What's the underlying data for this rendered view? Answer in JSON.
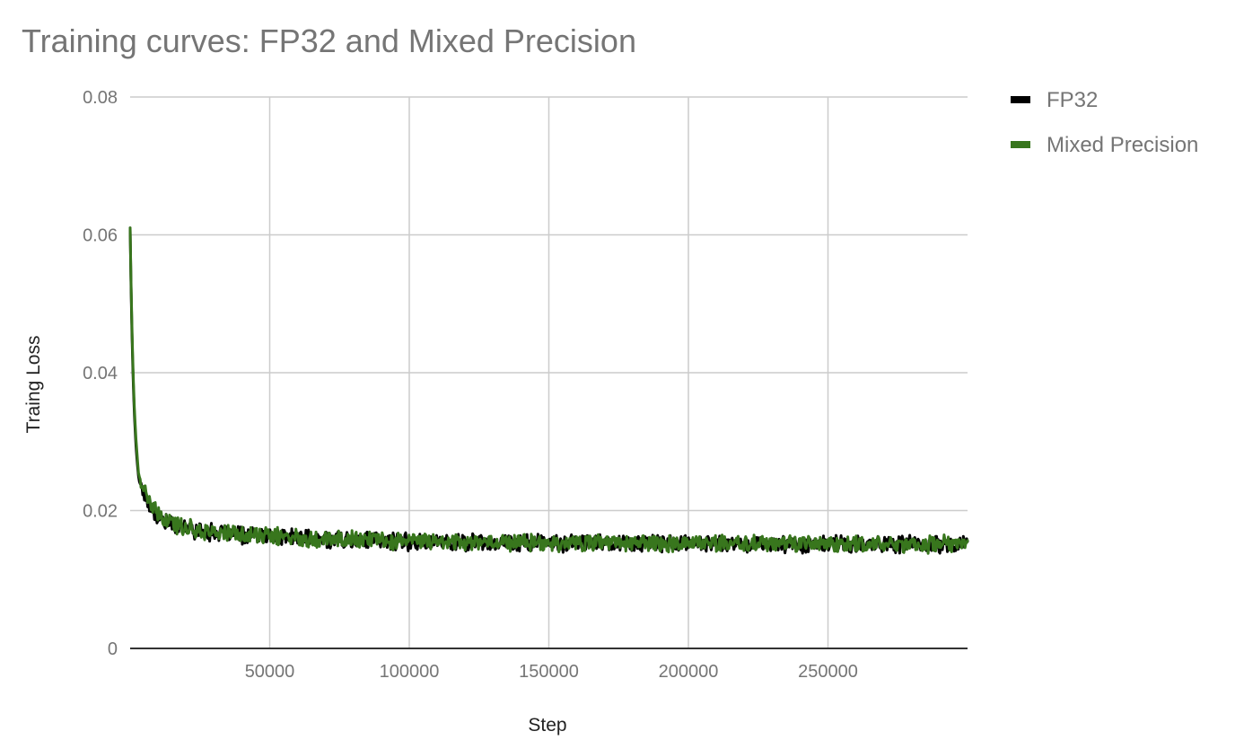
{
  "chart_data": {
    "type": "line",
    "title": "Training curves: FP32 and Mixed Precision",
    "xlabel": "Step",
    "ylabel": "Traing Loss",
    "xlim": [
      0,
      300000
    ],
    "ylim": [
      0,
      0.08
    ],
    "x_ticks": [
      50000,
      100000,
      150000,
      200000,
      250000
    ],
    "x_tick_labels": [
      "50000",
      "100000",
      "150000",
      "200000",
      "250000"
    ],
    "y_ticks": [
      0,
      0.02,
      0.04,
      0.06,
      0.08
    ],
    "y_tick_labels": [
      "0",
      "0.02",
      "0.04",
      "0.06",
      "0.08"
    ],
    "grid": true,
    "legend_position": "top-right",
    "series": [
      {
        "name": "FP32",
        "color": "#000000",
        "x": [
          0,
          500,
          1000,
          1500,
          2000,
          2500,
          3000,
          4000,
          5000,
          6000,
          8000,
          10000,
          12500,
          15000,
          20000,
          25000,
          30000,
          40000,
          50000,
          60000,
          75000,
          100000,
          125000,
          150000,
          175000,
          200000,
          225000,
          250000,
          275000,
          300000
        ],
        "values": [
          0.061,
          0.048,
          0.04,
          0.034,
          0.03,
          0.027,
          0.025,
          0.0235,
          0.0225,
          0.0215,
          0.02,
          0.019,
          0.0185,
          0.018,
          0.0175,
          0.017,
          0.0168,
          0.0164,
          0.0162,
          0.016,
          0.0158,
          0.0155,
          0.0154,
          0.0153,
          0.0153,
          0.0152,
          0.0152,
          0.0151,
          0.0151,
          0.015
        ]
      },
      {
        "name": "Mixed Precision",
        "color": "#38761d",
        "x": [
          0,
          500,
          1000,
          1500,
          2000,
          2500,
          3000,
          4000,
          5000,
          6000,
          8000,
          10000,
          12500,
          15000,
          20000,
          25000,
          30000,
          40000,
          50000,
          60000,
          75000,
          100000,
          125000,
          150000,
          175000,
          200000,
          225000,
          250000,
          275000,
          300000
        ],
        "values": [
          0.061,
          0.049,
          0.041,
          0.035,
          0.031,
          0.028,
          0.0255,
          0.024,
          0.023,
          0.022,
          0.0205,
          0.0192,
          0.0186,
          0.0181,
          0.0176,
          0.0171,
          0.0168,
          0.0165,
          0.0163,
          0.0161,
          0.0159,
          0.0156,
          0.0155,
          0.0154,
          0.0153,
          0.0153,
          0.0152,
          0.0152,
          0.0151,
          0.0151
        ],
        "noise_amplitude": 0.0012
      }
    ]
  }
}
